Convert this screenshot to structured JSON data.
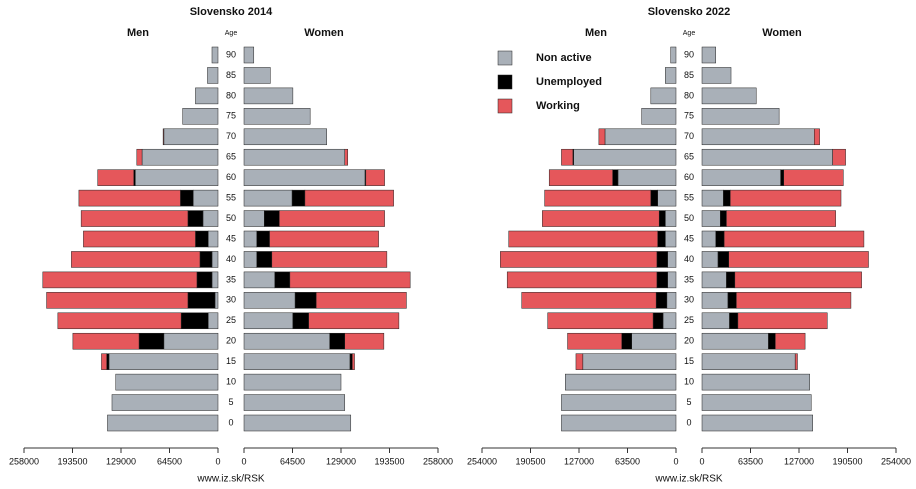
{
  "chart_data": [
    {
      "type": "pyramid",
      "title": "Slovensko 2014",
      "left_label": "Men",
      "right_label": "Women",
      "age_label": "Age",
      "source": "www.iz.sk/RSK",
      "categories": [
        "0",
        "5",
        "10",
        "15",
        "20",
        "25",
        "30",
        "35",
        "40",
        "45",
        "50",
        "55",
        "60",
        "65",
        "70",
        "75",
        "80",
        "85",
        "90"
      ],
      "xlim": [
        0,
        258000
      ],
      "xticks": [
        0,
        64500,
        129000,
        193500,
        258000
      ],
      "series": [
        {
          "color": "#a9b0b8",
          "men": [
            147000,
            141000,
            136000,
            145000,
            72000,
            13000,
            4000,
            8000,
            8000,
            13000,
            20000,
            33000,
            110000,
            101000,
            72000,
            47000,
            30000,
            14000,
            8000
          ],
          "women": [
            142000,
            134000,
            129000,
            141000,
            114000,
            65000,
            68000,
            41000,
            17000,
            17000,
            27000,
            64000,
            161000,
            134000,
            110000,
            88000,
            65000,
            35000,
            13000
          ]
        },
        {
          "color": "#000000",
          "men": [
            0,
            0,
            0,
            3000,
            33000,
            36000,
            36000,
            20000,
            16000,
            17000,
            20000,
            17000,
            2000,
            0,
            0,
            0,
            0,
            0,
            0
          ],
          "women": [
            0,
            0,
            0,
            3000,
            20000,
            21000,
            28000,
            20000,
            20000,
            17000,
            20000,
            17000,
            1000,
            0,
            0,
            0,
            0,
            0,
            0
          ]
        },
        {
          "color": "#e5575b",
          "men": [
            0,
            0,
            0,
            7000,
            88000,
            164000,
            188000,
            205000,
            171000,
            149000,
            142000,
            135000,
            48000,
            7000,
            1000,
            0,
            0,
            0,
            0
          ],
          "women": [
            0,
            0,
            0,
            3000,
            52000,
            120000,
            120000,
            160000,
            153000,
            145000,
            140000,
            118000,
            25000,
            4000,
            0,
            0,
            0,
            0,
            0
          ]
        }
      ]
    },
    {
      "type": "pyramid",
      "title": "Slovensko 2022",
      "left_label": "Men",
      "right_label": "Women",
      "age_label": "Age",
      "source": "www.iz.sk/RSK",
      "categories": [
        "0",
        "5",
        "10",
        "15",
        "20",
        "25",
        "30",
        "35",
        "40",
        "45",
        "50",
        "55",
        "60",
        "65",
        "70",
        "75",
        "80",
        "85",
        "90"
      ],
      "xlim": [
        0,
        254000
      ],
      "xticks": [
        0,
        63500,
        127000,
        190500,
        254000
      ],
      "series": [
        {
          "name": "Non active",
          "color": "#a9b0b8",
          "men": [
            150000,
            150000,
            145000,
            122000,
            58000,
            17000,
            12000,
            11000,
            11000,
            14000,
            14000,
            24000,
            76000,
            134000,
            93000,
            45000,
            33000,
            14000,
            7000
          ],
          "women": [
            145000,
            143000,
            141000,
            122000,
            87000,
            36000,
            34000,
            32000,
            21000,
            18000,
            24000,
            28000,
            103000,
            171000,
            147000,
            101000,
            71000,
            38000,
            18000
          ]
        },
        {
          "name": "Unemployed",
          "color": "#000000",
          "men": [
            0,
            0,
            0,
            0,
            13000,
            13000,
            14000,
            14000,
            14000,
            10000,
            8000,
            9000,
            7000,
            1000,
            0,
            0,
            0,
            0,
            0
          ],
          "women": [
            0,
            0,
            0,
            0,
            9000,
            11000,
            11000,
            11000,
            14000,
            11000,
            8000,
            9000,
            4000,
            0,
            0,
            0,
            0,
            0,
            0
          ]
        },
        {
          "name": "Working",
          "color": "#e5575b",
          "men": [
            0,
            0,
            0,
            9000,
            71000,
            138000,
            176000,
            196000,
            205000,
            195000,
            153000,
            139000,
            83000,
            15000,
            8000,
            0,
            0,
            0,
            0
          ],
          "women": [
            0,
            0,
            0,
            3000,
            39000,
            117000,
            150000,
            166000,
            183000,
            183000,
            143000,
            145000,
            78000,
            17000,
            7000,
            0,
            0,
            0,
            0
          ]
        }
      ]
    }
  ]
}
